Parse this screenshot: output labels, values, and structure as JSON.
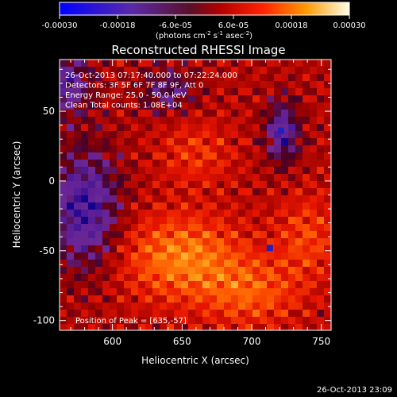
{
  "colorbar": {
    "ticks": [
      "-0.00030",
      "-0.00018",
      "-6.0e-05",
      "6.0e-05",
      "0.00018",
      "0.00030"
    ],
    "unit_main": "(photons cm",
    "unit_exp1": "-2",
    "unit_mid": " s",
    "unit_exp2": "-1",
    "unit_end": " asec",
    "unit_exp3": "-2",
    "unit_close": ")"
  },
  "chart_data": {
    "type": "heatmap",
    "title": "Reconstructed RHESSI Image",
    "xlabel": "Heliocentric X (arcsec)",
    "ylabel": "Heliocentric Y (arcsec)",
    "xlim": [
      562,
      757
    ],
    "ylim": [
      -107,
      87
    ],
    "xticks": [
      600,
      650,
      700,
      750
    ],
    "yticks": [
      -100,
      -50,
      0,
      50
    ],
    "colorbar_range": [
      -0.0003,
      0.0003
    ],
    "colormap": "blue-purple-red-orange-yellow-white",
    "annotations": [
      "26-Oct-2013 07:17:40.000 to 07:22:24.000",
      "Detectors: 3F 5F 6F 7F 8F 9F, Att 0",
      "Energy Range: 25.0 - 50.0 keV",
      "Clean      Total counts: 1.08E+04"
    ],
    "peak_label": "Position of Peak = [635,-57]",
    "peak": [
      635,
      -57
    ],
    "footer_timestamp": "26-Oct-2013 23:09",
    "grid": false
  }
}
